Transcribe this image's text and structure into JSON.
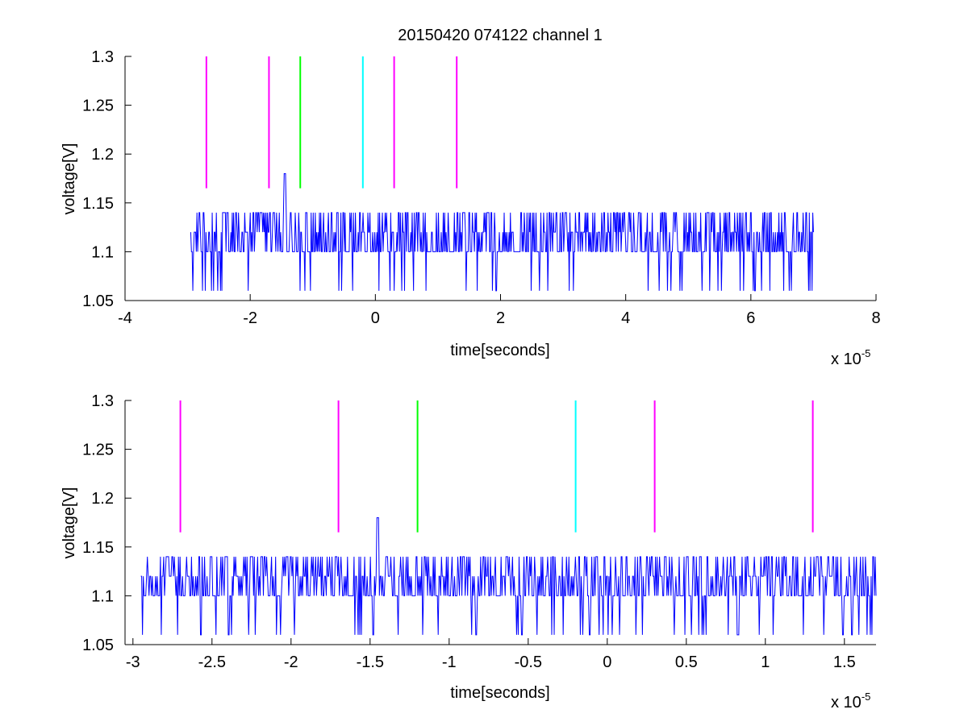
{
  "figure": {
    "title": "20150420 074122 channel 1"
  },
  "chart_data": [
    {
      "type": "line",
      "title": "20150420 074122 channel 1",
      "xlabel": "time[seconds]",
      "ylabel": "voltage[V]",
      "x_multiplier_label": "x 10",
      "x_multiplier_exponent": "-5",
      "xlim": [
        -4e-05,
        8e-05
      ],
      "ylim": [
        1.05,
        1.3
      ],
      "xticks": [
        -4e-05,
        -2e-05,
        0,
        2e-05,
        4e-05,
        6e-05,
        8e-05
      ],
      "xtick_labels": [
        "-4",
        "-2",
        "0",
        "2",
        "4",
        "6",
        "8"
      ],
      "yticks": [
        1.05,
        1.1,
        1.15,
        1.2,
        1.25,
        1.3
      ],
      "ytick_labels": [
        "1.05",
        "1.1",
        "1.15",
        "1.2",
        "1.25",
        "1.3"
      ],
      "series": [
        {
          "color": "#0000ff",
          "x_range": [
            -2.95e-05,
            7e-05
          ],
          "baseline": 1.1,
          "levels": [
            1.06,
            1.1,
            1.12,
            1.14
          ],
          "peak": {
            "x": -1.45e-05,
            "y": 1.18
          }
        }
      ],
      "markers": [
        {
          "x": -2.7e-05,
          "y_range": [
            1.165,
            1.3
          ],
          "color": "#ff00ff"
        },
        {
          "x": -1.7e-05,
          "y_range": [
            1.165,
            1.3
          ],
          "color": "#ff00ff"
        },
        {
          "x": -1.2e-05,
          "y_range": [
            1.165,
            1.3
          ],
          "color": "#00ff00"
        },
        {
          "x": -2e-06,
          "y_range": [
            1.165,
            1.3
          ],
          "color": "#00ffff"
        },
        {
          "x": 3e-06,
          "y_range": [
            1.165,
            1.3
          ],
          "color": "#ff00ff"
        },
        {
          "x": 1.3e-05,
          "y_range": [
            1.165,
            1.3
          ],
          "color": "#ff00ff"
        }
      ]
    },
    {
      "type": "line",
      "xlabel": "time[seconds]",
      "ylabel": "voltage[V]",
      "x_multiplier_label": "x 10",
      "x_multiplier_exponent": "-5",
      "xlim": [
        -3.05e-05,
        1.7e-05
      ],
      "ylim": [
        1.05,
        1.3
      ],
      "xticks": [
        -3e-05,
        -2.5e-05,
        -2e-05,
        -1.5e-05,
        -1e-05,
        -5e-06,
        0,
        5e-06,
        1e-05,
        1.5e-05
      ],
      "xtick_labels": [
        "-3",
        "-2.5",
        "-2",
        "-1.5",
        "-1",
        "-0.5",
        "0",
        "0.5",
        "1",
        "1.5"
      ],
      "yticks": [
        1.05,
        1.1,
        1.15,
        1.2,
        1.25,
        1.3
      ],
      "ytick_labels": [
        "1.05",
        "1.1",
        "1.15",
        "1.2",
        "1.25",
        "1.3"
      ],
      "series": [
        {
          "color": "#0000ff",
          "x_range": [
            -2.95e-05,
            1.7e-05
          ],
          "baseline": 1.1,
          "levels": [
            1.06,
            1.1,
            1.12,
            1.14
          ],
          "peak": {
            "x": -1.45e-05,
            "y": 1.18
          }
        }
      ],
      "markers": [
        {
          "x": -2.7e-05,
          "y_range": [
            1.165,
            1.3
          ],
          "color": "#ff00ff"
        },
        {
          "x": -1.7e-05,
          "y_range": [
            1.165,
            1.3
          ],
          "color": "#ff00ff"
        },
        {
          "x": -1.2e-05,
          "y_range": [
            1.165,
            1.3
          ],
          "color": "#00ff00"
        },
        {
          "x": -2e-06,
          "y_range": [
            1.165,
            1.3
          ],
          "color": "#00ffff"
        },
        {
          "x": 3e-06,
          "y_range": [
            1.165,
            1.3
          ],
          "color": "#ff00ff"
        },
        {
          "x": 1.3e-05,
          "y_range": [
            1.165,
            1.3
          ],
          "color": "#ff00ff"
        }
      ]
    }
  ]
}
